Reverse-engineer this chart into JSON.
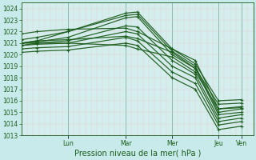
{
  "xlabel": "Pression niveau de la mer( hPa )",
  "background_color": "#c8eaea",
  "plot_background_color": "#d4eeee",
  "grid_minor_color": "#e8c8c8",
  "grid_major_color": "#a8d0d0",
  "line_color": "#1a5c1a",
  "ylim": [
    1013,
    1024.5
  ],
  "yticks": [
    1013,
    1014,
    1015,
    1016,
    1017,
    1018,
    1019,
    1020,
    1021,
    1022,
    1023,
    1024
  ],
  "day_labels": [
    "Lun",
    "Mar",
    "Mer",
    "Jeu",
    "Ven"
  ],
  "xlim": [
    0,
    120
  ],
  "day_tick_x": [
    24,
    54,
    78,
    102,
    114
  ],
  "lines": [
    [
      1021.0,
      1021.2,
      1022.0,
      1023.4,
      1023.5,
      1020.3,
      1019.0,
      1015.0,
      1015.3
    ],
    [
      1021.0,
      1021.1,
      1021.5,
      1023.2,
      1023.3,
      1020.0,
      1018.8,
      1014.8,
      1015.0
    ],
    [
      1021.0,
      1021.0,
      1021.2,
      1022.5,
      1022.4,
      1019.5,
      1018.3,
      1014.5,
      1014.8
    ],
    [
      1020.8,
      1020.9,
      1021.0,
      1022.0,
      1021.8,
      1019.0,
      1018.0,
      1014.2,
      1014.5
    ],
    [
      1020.5,
      1020.6,
      1020.7,
      1021.5,
      1021.2,
      1018.5,
      1017.5,
      1013.9,
      1014.2
    ],
    [
      1020.2,
      1020.3,
      1020.4,
      1021.0,
      1020.8,
      1018.0,
      1017.0,
      1013.5,
      1013.8
    ],
    [
      1021.3,
      1021.5,
      1022.0,
      1023.6,
      1023.7,
      1020.5,
      1019.5,
      1015.3,
      1015.5
    ],
    [
      1021.8,
      1022.0,
      1022.2,
      1022.3,
      1022.0,
      1020.5,
      1019.2,
      1016.0,
      1016.1
    ],
    [
      1021.0,
      1021.2,
      1021.3,
      1021.6,
      1021.4,
      1020.2,
      1018.8,
      1015.7,
      1015.8
    ],
    [
      1020.8,
      1021.0,
      1021.0,
      1020.8,
      1020.5,
      1019.8,
      1018.5,
      1015.3,
      1015.4
    ]
  ],
  "marker_x_indices": [
    0,
    1,
    2,
    3,
    4,
    5,
    6,
    7,
    8
  ],
  "xlabel_fontsize": 7,
  "tick_fontsize": 5.5,
  "linewidth": 0.9,
  "markersize": 3.5
}
